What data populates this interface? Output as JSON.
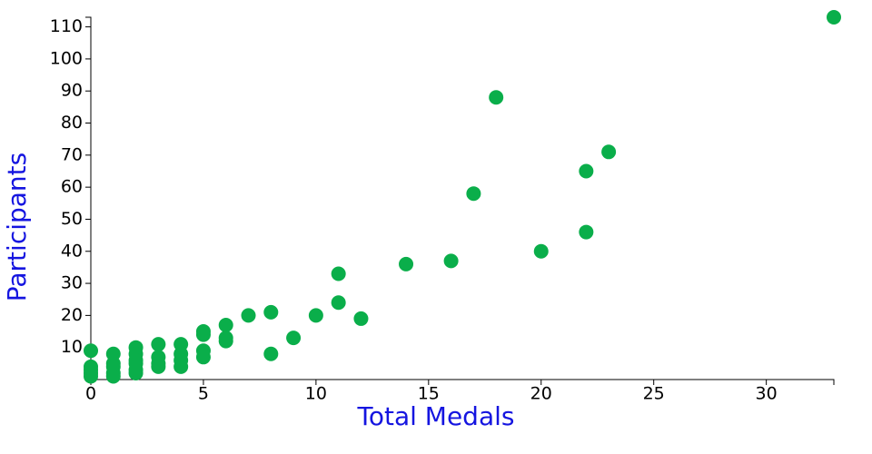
{
  "chart_data": {
    "type": "scatter",
    "x_label": "Total Medals",
    "y_label": "Participants",
    "color": "#0aae4a",
    "x": [
      33,
      18,
      23,
      22,
      17,
      22,
      20,
      16,
      14,
      11,
      11,
      8,
      7,
      10,
      12,
      6,
      5,
      5,
      9,
      6,
      6,
      4,
      3,
      2,
      0,
      5,
      2,
      4,
      1,
      8,
      5,
      3,
      2,
      4,
      3,
      1,
      2,
      0,
      4,
      1,
      3,
      0,
      2,
      1,
      0,
      2,
      0,
      1
    ],
    "y": [
      113,
      88,
      71,
      65,
      58,
      46,
      40,
      37,
      36,
      33,
      24,
      21,
      20,
      20,
      19,
      17,
      15,
      14,
      13,
      13,
      12,
      11,
      11,
      10,
      9,
      9,
      8,
      8,
      8,
      8,
      7,
      7,
      6,
      6,
      5,
      5,
      5,
      4,
      4,
      4,
      4,
      3,
      3,
      2,
      2,
      2,
      1,
      1
    ],
    "xlim": [
      0,
      33
    ],
    "ylim": [
      0,
      113
    ],
    "xticks": [
      0,
      5,
      10,
      15,
      20,
      25,
      30
    ],
    "yticks": [
      10,
      20,
      30,
      40,
      50,
      60,
      70,
      80,
      90,
      100,
      110
    ]
  }
}
